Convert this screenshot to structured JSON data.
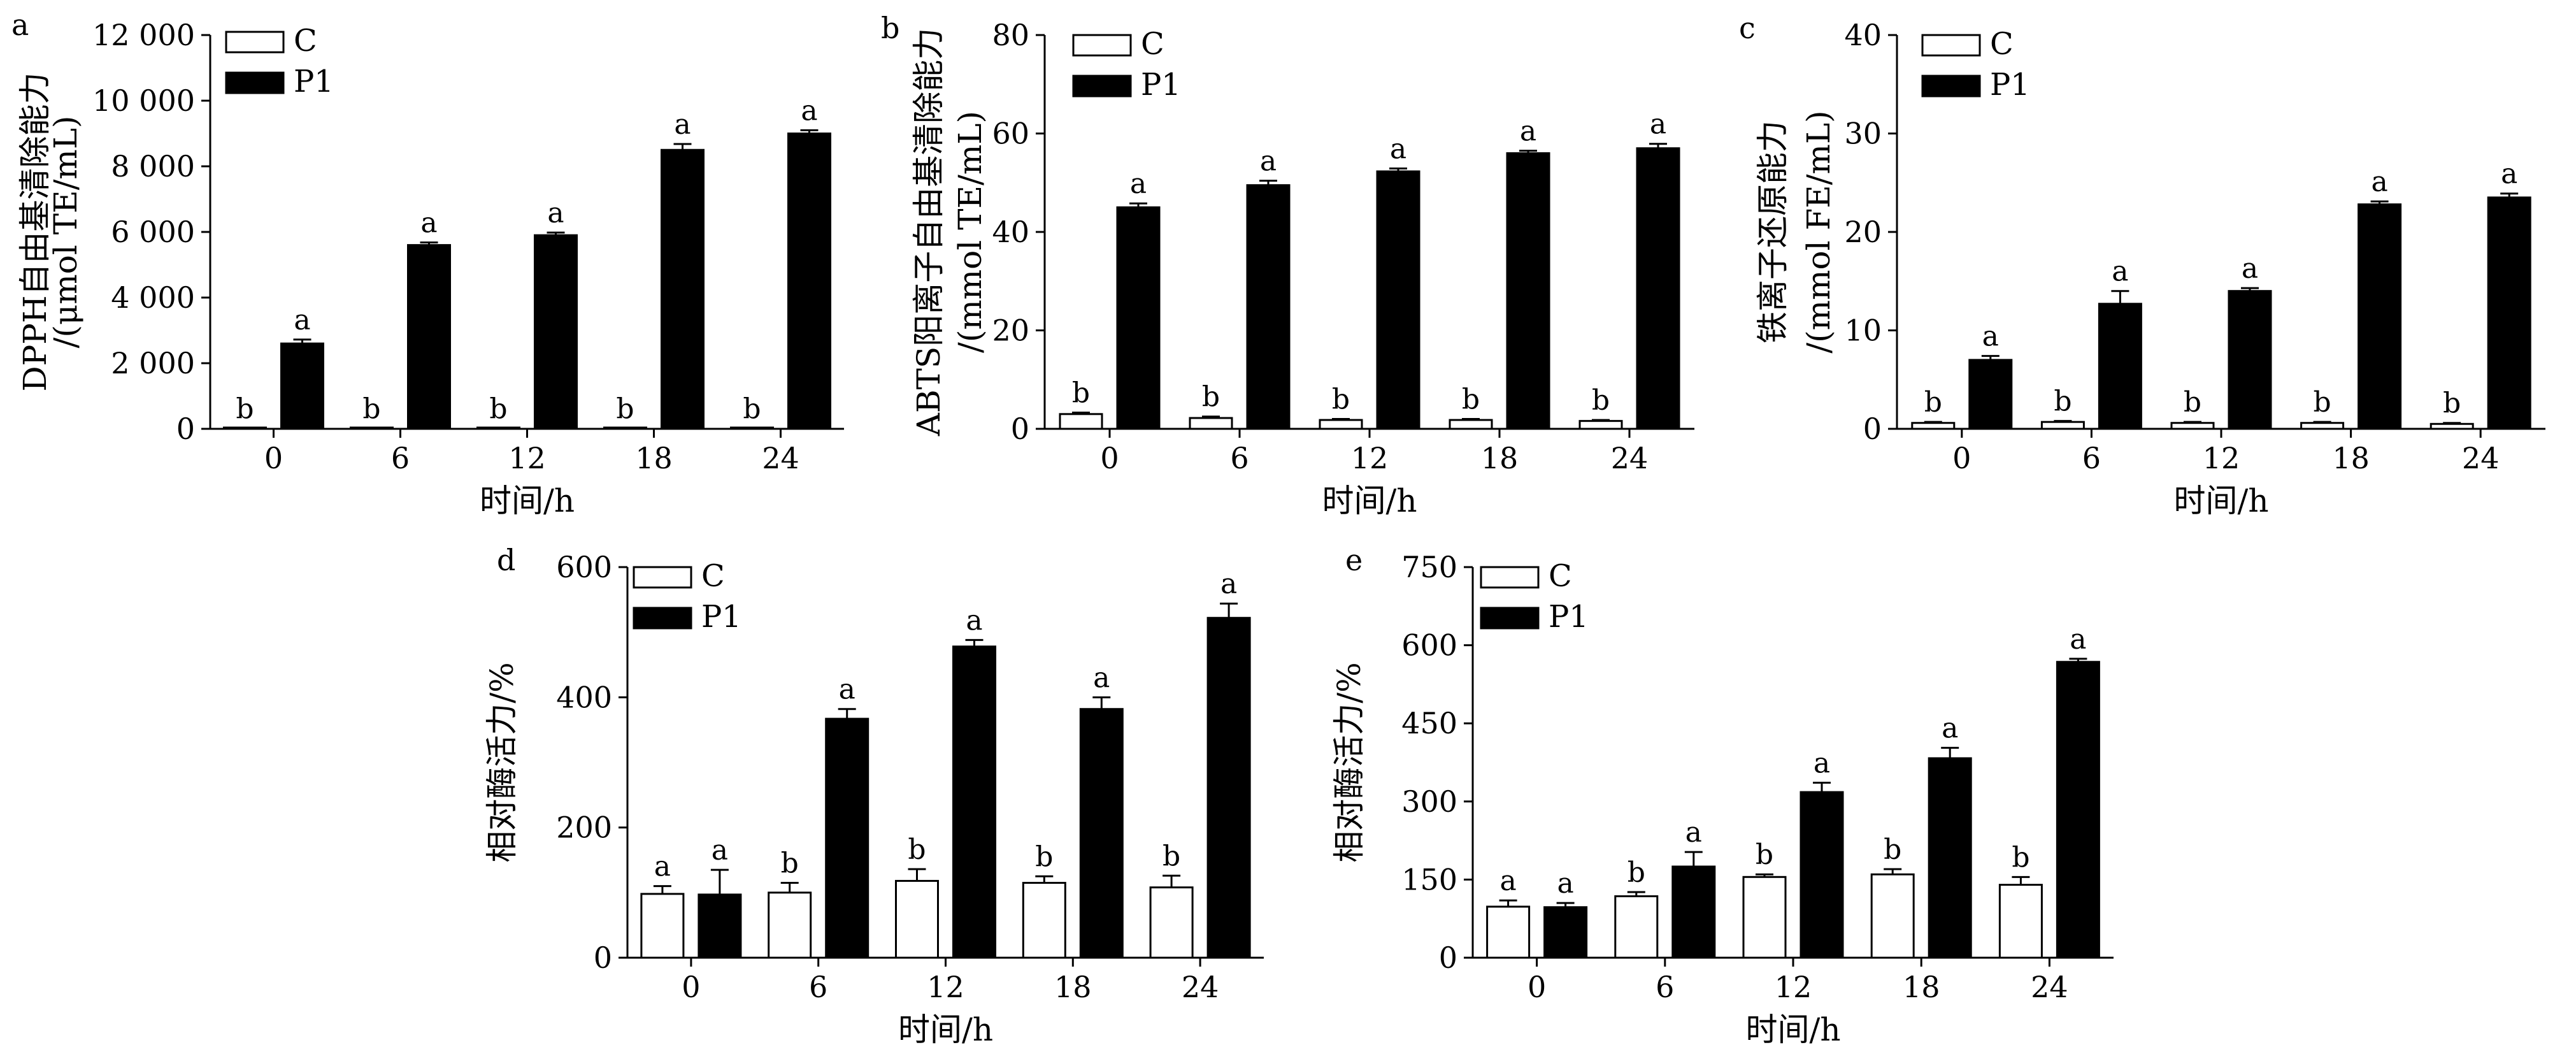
{
  "figure": {
    "legend": {
      "control_label": "C",
      "treated_label": "P1"
    },
    "colors": {
      "control_fill": "#ffffff",
      "treated_fill": "#000000",
      "axis": "#000000"
    }
  },
  "chart_data": [
    {
      "type": "bar",
      "panel": "a",
      "categories": [
        "0",
        "6",
        "12",
        "18",
        "24"
      ],
      "xlabel": "时间/h",
      "ylabel_line1": "DPPH自由基清除能力",
      "ylabel_line2": "/(μmol TE/mL)",
      "ylim": [
        0,
        12000
      ],
      "yticks": [
        0,
        2000,
        4000,
        6000,
        8000,
        10000,
        12000
      ],
      "ytick_labels": [
        "0",
        "2 000",
        "4 000",
        "6 000",
        "8 000",
        "10 000",
        "12 000"
      ],
      "legend_position": "top-left",
      "series": [
        {
          "name": "C",
          "values": [
            10,
            10,
            10,
            10,
            10
          ],
          "errors": [
            0,
            0,
            0,
            0,
            0
          ],
          "labels": [
            "b",
            "b",
            "b",
            "b",
            "b"
          ]
        },
        {
          "name": "P1",
          "values": [
            2600,
            5600,
            5900,
            8500,
            9000
          ],
          "errors": [
            120,
            80,
            80,
            180,
            100
          ],
          "labels": [
            "a",
            "a",
            "a",
            "a",
            "a"
          ]
        }
      ]
    },
    {
      "type": "bar",
      "panel": "b",
      "categories": [
        "0",
        "6",
        "12",
        "18",
        "24"
      ],
      "xlabel": "时间/h",
      "ylabel_line1": "ABTS阳离子自由基清除能力",
      "ylabel_line2": "/(mmol TE/mL)",
      "ylim": [
        0,
        80
      ],
      "yticks": [
        0,
        20,
        40,
        60,
        80
      ],
      "ytick_labels": [
        "0",
        "20",
        "40",
        "60",
        "80"
      ],
      "legend_position": "top-left",
      "series": [
        {
          "name": "C",
          "values": [
            3,
            2.2,
            1.8,
            1.8,
            1.6
          ],
          "errors": [
            0.3,
            0.3,
            0.2,
            0.2,
            0.2
          ],
          "labels": [
            "b",
            "b",
            "b",
            "b",
            "b"
          ]
        },
        {
          "name": "P1",
          "values": [
            45,
            49.5,
            52.3,
            56,
            57
          ],
          "errors": [
            0.8,
            0.9,
            0.6,
            0.5,
            0.9
          ],
          "labels": [
            "a",
            "a",
            "a",
            "a",
            "a"
          ]
        }
      ]
    },
    {
      "type": "bar",
      "panel": "c",
      "categories": [
        "0",
        "6",
        "12",
        "18",
        "24"
      ],
      "xlabel": "时间/h",
      "ylabel_line1": "铁离子还原能力",
      "ylabel_line2": "/(mmol FE/mL)",
      "ylim": [
        0,
        40
      ],
      "yticks": [
        0,
        10,
        20,
        30,
        40
      ],
      "ytick_labels": [
        "0",
        "10",
        "20",
        "30",
        "40"
      ],
      "legend_position": "top-left",
      "series": [
        {
          "name": "C",
          "values": [
            0.6,
            0.7,
            0.6,
            0.6,
            0.5
          ],
          "errors": [
            0.1,
            0.1,
            0.1,
            0.1,
            0.1
          ],
          "labels": [
            "b",
            "b",
            "b",
            "b",
            "b"
          ]
        },
        {
          "name": "P1",
          "values": [
            7,
            12.7,
            14,
            22.8,
            23.5
          ],
          "errors": [
            0.4,
            1.3,
            0.3,
            0.3,
            0.4
          ],
          "labels": [
            "a",
            "a",
            "a",
            "a",
            "a"
          ]
        }
      ]
    },
    {
      "type": "bar",
      "panel": "d",
      "categories": [
        "0",
        "6",
        "12",
        "18",
        "24"
      ],
      "xlabel": "时间/h",
      "ylabel_line1": "相对酶活力/%",
      "ylabel_line2": "",
      "ylim": [
        0,
        600
      ],
      "yticks": [
        0,
        200,
        400,
        600
      ],
      "ytick_labels": [
        "0",
        "200",
        "400",
        "600"
      ],
      "legend_position": "top-left",
      "series": [
        {
          "name": "C",
          "values": [
            98,
            100,
            118,
            115,
            108
          ],
          "errors": [
            12,
            15,
            18,
            10,
            18
          ],
          "labels": [
            "a",
            "b",
            "b",
            "b",
            "b"
          ]
        },
        {
          "name": "P1",
          "values": [
            97,
            367,
            478,
            382,
            522
          ],
          "errors": [
            38,
            15,
            10,
            18,
            22
          ],
          "labels": [
            "a",
            "a",
            "a",
            "a",
            "a"
          ]
        }
      ]
    },
    {
      "type": "bar",
      "panel": "e",
      "categories": [
        "0",
        "6",
        "12",
        "18",
        "24"
      ],
      "xlabel": "时间/h",
      "ylabel_line1": "相对酶活力/%",
      "ylabel_line2": "",
      "ylim": [
        0,
        750
      ],
      "yticks": [
        0,
        150,
        300,
        450,
        600,
        750
      ],
      "ytick_labels": [
        "0",
        "150",
        "300",
        "450",
        "600",
        "750"
      ],
      "legend_position": "top-left",
      "series": [
        {
          "name": "C",
          "values": [
            98,
            118,
            155,
            160,
            140
          ],
          "errors": [
            12,
            8,
            5,
            10,
            15
          ],
          "labels": [
            "a",
            "b",
            "b",
            "b",
            "b"
          ]
        },
        {
          "name": "P1",
          "values": [
            97,
            175,
            318,
            383,
            568
          ],
          "errors": [
            8,
            28,
            18,
            20,
            6
          ],
          "labels": [
            "a",
            "a",
            "a",
            "a",
            "a"
          ]
        }
      ]
    }
  ]
}
